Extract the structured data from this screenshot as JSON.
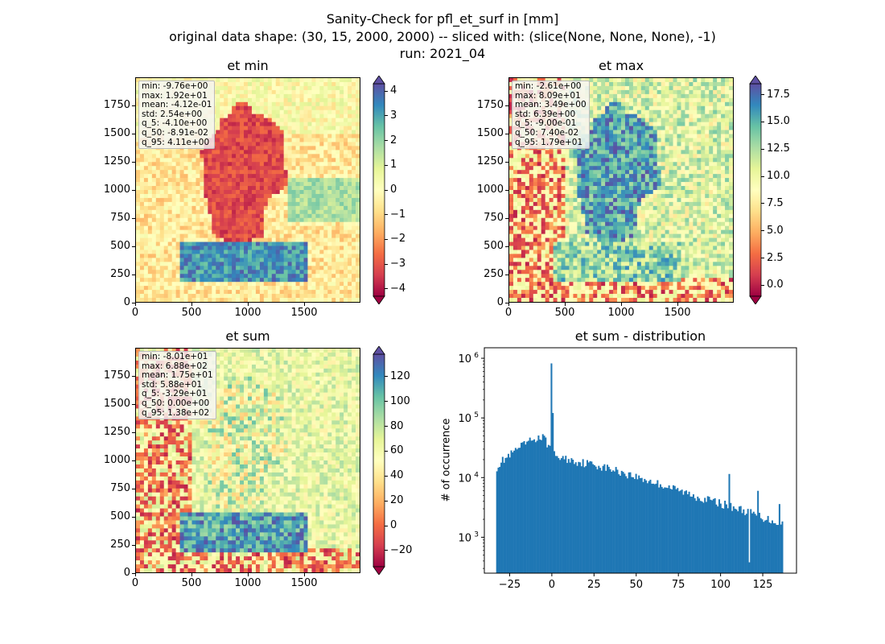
{
  "figure": {
    "title_lines": [
      "Sanity-Check for pfl_et_surf in [mm]",
      "original data shape: (30, 15, 2000, 2000) -- sliced with: (slice(None, None, None), -1)",
      "run: 2021_04"
    ]
  },
  "colormap": "Spectral",
  "colors": {
    "low": "#c2234f",
    "mid": "#feffbd",
    "high": "#5e4fa2",
    "histogram": "#1f77b4"
  },
  "chart_data": [
    {
      "type": "heatmap",
      "id": "et_min",
      "title": "et min",
      "x_ticks": [
        "0",
        "500",
        "1000",
        "1500"
      ],
      "y_ticks": [
        "0",
        "250",
        "500",
        "750",
        "1000",
        "1250",
        "1500",
        "1750"
      ],
      "xlim": [
        0,
        2000
      ],
      "ylim": [
        0,
        2000
      ],
      "colorbar": {
        "range": [
          -4.3,
          4.3
        ],
        "ticks": [
          "4",
          "3",
          "2",
          "1",
          "0",
          "−1",
          "−2",
          "−3",
          "−4"
        ],
        "tick_values": [
          4,
          3,
          2,
          1,
          0,
          -1,
          -2,
          -3,
          -4
        ],
        "extend": "both"
      },
      "stats": [
        "min: -9.76e+00",
        "max: 1.92e+01",
        "mean: -4.12e-01",
        "std: 2.54e+00",
        "q_5: -4.10e+00",
        "q_50: -8.91e-02",
        "q_95: 4.11e+00"
      ]
    },
    {
      "type": "heatmap",
      "id": "et_max",
      "title": "et max",
      "x_ticks": [
        "0",
        "500",
        "1000",
        "1500"
      ],
      "y_ticks": [
        "0",
        "250",
        "500",
        "750",
        "1000",
        "1250",
        "1500",
        "1750"
      ],
      "xlim": [
        0,
        2000
      ],
      "ylim": [
        0,
        2000
      ],
      "colorbar": {
        "range": [
          -1.0,
          18.5
        ],
        "ticks": [
          "17.5",
          "15.0",
          "12.5",
          "10.0",
          "7.5",
          "5.0",
          "2.5",
          "0.0"
        ],
        "tick_values": [
          17.5,
          15.0,
          12.5,
          10.0,
          7.5,
          5.0,
          2.5,
          0.0
        ],
        "extend": "both"
      },
      "stats": [
        "min: -2.61e+00",
        "max: 8.09e+01",
        "mean: 3.49e+00",
        "std: 6.39e+00",
        "q_5: -9.00e-01",
        "q_50: 7.40e-02",
        "q_95: 1.79e+01"
      ]
    },
    {
      "type": "heatmap",
      "id": "et_sum",
      "title": "et sum",
      "x_ticks": [
        "0",
        "500",
        "1000",
        "1500"
      ],
      "y_ticks": [
        "0",
        "250",
        "500",
        "750",
        "1000",
        "1250",
        "1500",
        "1750"
      ],
      "xlim": [
        0,
        2000
      ],
      "ylim": [
        0,
        2000
      ],
      "colorbar": {
        "range": [
          -33,
          138
        ],
        "ticks": [
          "120",
          "100",
          "80",
          "60",
          "40",
          "20",
          "0",
          "−20"
        ],
        "tick_values": [
          120,
          100,
          80,
          60,
          40,
          20,
          0,
          -20
        ],
        "extend": "both"
      },
      "stats": [
        "min: -8.01e+01",
        "max: 6.88e+02",
        "mean: 1.75e+01",
        "std: 5.88e+01",
        "q_5: -3.29e+01",
        "q_50: 0.00e+00",
        "q_95: 1.38e+02"
      ]
    },
    {
      "type": "bar",
      "id": "et_sum_hist",
      "title": "et sum - distribution",
      "ylabel": "# of occurrence",
      "yscale": "log",
      "xlim": [
        -40,
        145
      ],
      "ylim": [
        250,
        1500000
      ],
      "x_ticks": [
        "−25",
        "0",
        "25",
        "50",
        "75",
        "100",
        "125"
      ],
      "x_tick_values": [
        -25,
        0,
        25,
        50,
        75,
        100,
        125
      ],
      "y_ticks": [
        {
          "base": "10",
          "exp": "3",
          "value": 1000
        },
        {
          "base": "10",
          "exp": "4",
          "value": 10000
        },
        {
          "base": "10",
          "exp": "5",
          "value": 100000
        },
        {
          "base": "10",
          "exp": "6",
          "value": 1000000
        }
      ],
      "bin_range": [
        -33,
        137
      ],
      "bins": 200,
      "profile_x": [
        -33,
        -30,
        -25,
        -20,
        -15,
        -10,
        -5,
        -1,
        0,
        1,
        5,
        15,
        25,
        40,
        55,
        70,
        85,
        100,
        115,
        125,
        137
      ],
      "profile_count": [
        15000,
        19000,
        24000,
        31000,
        39000,
        46000,
        48000,
        32000,
        820000,
        25000,
        22000,
        19000,
        17000,
        13000,
        9500,
        7000,
        5000,
        3800,
        2800,
        2200,
        1700
      ],
      "spikes": [
        {
          "x": 0,
          "count": 820000
        },
        {
          "x": 105,
          "count": 11500
        },
        {
          "x": 117,
          "count": 380
        },
        {
          "x": 122,
          "count": 6000
        },
        {
          "x": 135,
          "count": 3600
        }
      ]
    }
  ]
}
